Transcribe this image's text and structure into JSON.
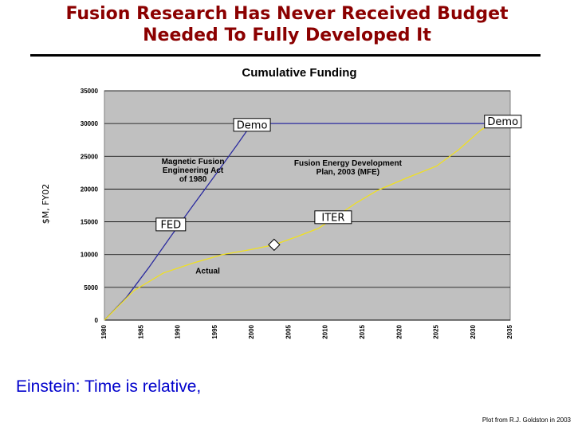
{
  "slide": {
    "title_line1": "Fusion Research Has Never Received Budget",
    "title_line2": "Needed To Fully Developed It",
    "quote": "Einstein: Time is relative,",
    "credit": "Plot from R.J. Goldston in 2003"
  },
  "chart_data": {
    "type": "line",
    "title": "Cumulative Funding",
    "ylabel": "$M, FY02",
    "xlim": [
      1980,
      2035
    ],
    "ylim": [
      0,
      35000
    ],
    "x_ticks": [
      1980,
      1985,
      1990,
      1995,
      2000,
      2005,
      2010,
      2015,
      2020,
      2025,
      2030,
      2035
    ],
    "y_ticks": [
      0,
      5000,
      10000,
      15000,
      20000,
      25000,
      30000,
      35000
    ],
    "series": [
      {
        "name": "Magnetic Fusion Engineering Act of 1980",
        "color": "#2b2b9f",
        "points": [
          [
            1980,
            0
          ],
          [
            1983,
            3500
          ],
          [
            1986,
            8000
          ],
          [
            1989,
            12800
          ],
          [
            1992,
            17500
          ],
          [
            1995,
            22100
          ],
          [
            1998,
            26800
          ],
          [
            2000,
            30000
          ],
          [
            2035,
            30000
          ]
        ]
      },
      {
        "name": "Actual",
        "color": "#f0e020",
        "points": [
          [
            1980,
            0
          ],
          [
            1984,
            4500
          ],
          [
            1988,
            7200
          ],
          [
            1992,
            8700
          ],
          [
            1996,
            10000
          ],
          [
            2000,
            10800
          ],
          [
            2003,
            11500
          ],
          [
            2006,
            12700
          ],
          [
            2009,
            14000
          ],
          [
            2011,
            15500
          ],
          [
            2014,
            17800
          ],
          [
            2017,
            19800
          ],
          [
            2021,
            21700
          ],
          [
            2025,
            23500
          ],
          [
            2028,
            26000
          ],
          [
            2031,
            29000
          ],
          [
            2034,
            31000
          ]
        ]
      }
    ],
    "marker": {
      "x": 2003,
      "y": 11500,
      "shape": "diamond"
    },
    "boxed_labels": [
      {
        "text": "Demo",
        "x": 2000,
        "y": 29800
      },
      {
        "text": "Demo",
        "x": 2034,
        "y": 30300
      },
      {
        "text": "FED",
        "x": 1989,
        "y": 14600
      },
      {
        "text": "ITER",
        "x": 2011,
        "y": 15700
      }
    ],
    "annotations": [
      {
        "text": [
          "Magnetic Fusion",
          "Engineering Act",
          "of 1980"
        ],
        "x": 1992,
        "y": 23800
      },
      {
        "text": [
          "Fusion Energy Development",
          "Plan, 2003 (MFE)"
        ],
        "x": 2013,
        "y": 23600
      },
      {
        "text": [
          "Actual"
        ],
        "x": 1994,
        "y": 7100
      }
    ],
    "grid": true,
    "legend": "none",
    "plot_bg": "#c0c0c0"
  }
}
